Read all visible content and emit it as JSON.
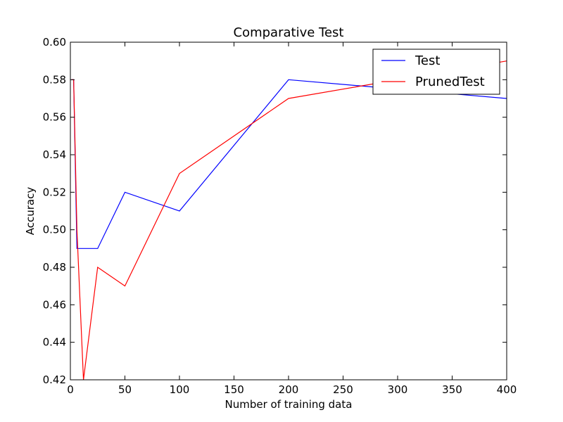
{
  "chart_data": {
    "type": "line",
    "title": "Comparative Test",
    "xlabel": "Number of training data",
    "ylabel": "Accuracy",
    "xlim": [
      0,
      400
    ],
    "ylim": [
      0.42,
      0.6
    ],
    "xticks": [
      0,
      50,
      100,
      150,
      200,
      250,
      300,
      350,
      400
    ],
    "yticks": [
      0.42,
      0.44,
      0.46,
      0.48,
      0.5,
      0.52,
      0.54,
      0.56,
      0.58,
      0.6
    ],
    "xtick_labels": [
      "0",
      "50",
      "100",
      "150",
      "200",
      "250",
      "300",
      "350",
      "400"
    ],
    "ytick_labels": [
      "0.42",
      "0.44",
      "0.46",
      "0.48",
      "0.50",
      "0.52",
      "0.54",
      "0.56",
      "0.58",
      "0.60"
    ],
    "grid": false,
    "legend_position": "top-right",
    "series": [
      {
        "name": "Test",
        "color": "#0000ff",
        "x": [
          1,
          3,
          6,
          12,
          25,
          50,
          100,
          200,
          400
        ],
        "y": [
          0.58,
          0.58,
          0.49,
          0.49,
          0.49,
          0.52,
          0.51,
          0.58,
          0.57
        ]
      },
      {
        "name": "PrunedTest",
        "color": "#ff0000",
        "x": [
          1,
          3,
          6,
          12,
          25,
          50,
          100,
          200,
          400
        ],
        "y": [
          0.58,
          0.58,
          0.5,
          0.42,
          0.48,
          0.47,
          0.53,
          0.57,
          0.59
        ]
      }
    ]
  }
}
